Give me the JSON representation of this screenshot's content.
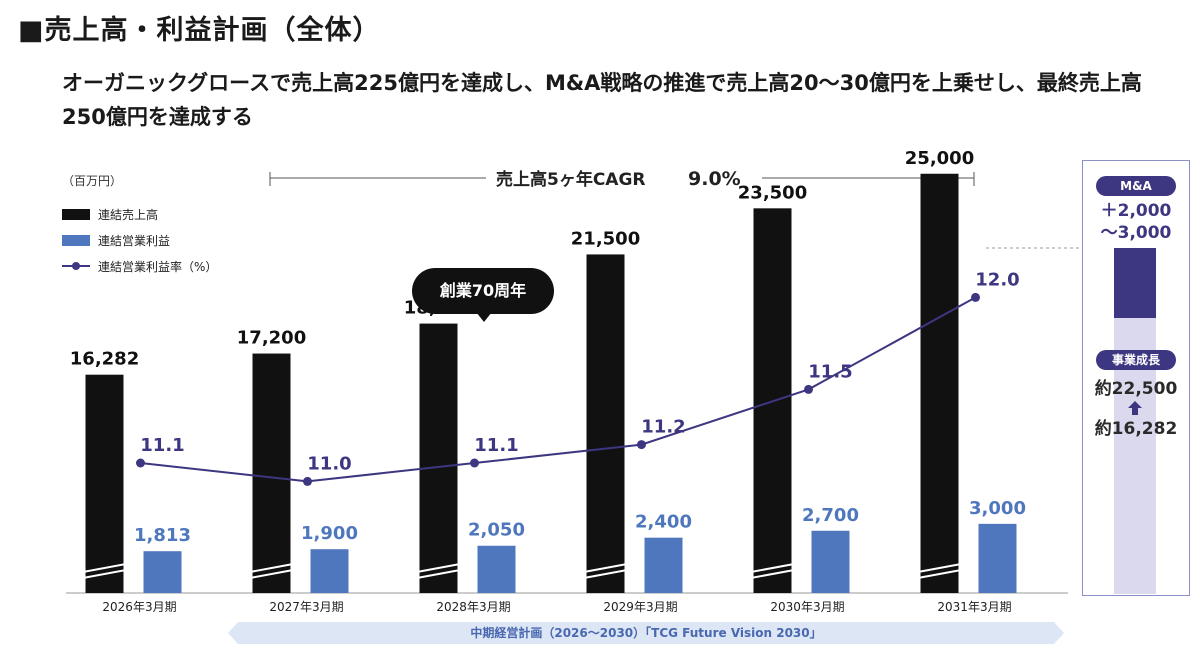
{
  "title": "■売上高・利益計画（全体）",
  "subtitle": "オーガニックグロースで売上高225億円を達成し、M&A戦略の推進で売上高20～30億円を上乗せし、最終売上高250億円を達成する",
  "unit": "（百万円）",
  "cagr": {
    "label": "売上高5ヶ年CAGR",
    "value": "9.0%"
  },
  "bubble": "創業70周年",
  "banner": "中期経営計画（2026～2030）「TCG Future Vision 2030」",
  "colors": {
    "sales": "#111111",
    "profit": "#4e77bd",
    "rate_line": "#3d3680",
    "rate_label": "#3d3680",
    "profit_label": "#4e77bd"
  },
  "side": {
    "ma_pill": "M&A",
    "ma_value_1": "＋2,000",
    "ma_value_2": "～3,000",
    "growth_pill": "事業成長",
    "growth_to": "約22,500",
    "growth_from": "約16,282"
  },
  "chart_data": {
    "type": "bar",
    "categories": [
      "2026年3月期",
      "2027年3月期",
      "2028年3月期",
      "2029年3月期",
      "2030年3月期",
      "2031年3月期"
    ],
    "series": [
      {
        "name": "連結売上高",
        "type": "bar",
        "values": [
          16282,
          17200,
          18500,
          21500,
          23500,
          25000
        ],
        "labels": [
          "16,282",
          "17,200",
          "18,500",
          "21,500",
          "23,500",
          "25,000"
        ]
      },
      {
        "name": "連結営業利益",
        "type": "bar",
        "values": [
          1813,
          1900,
          2050,
          2400,
          2700,
          3000
        ],
        "labels": [
          "1,813",
          "1,900",
          "2,050",
          "2,400",
          "2,700",
          "3,000"
        ]
      },
      {
        "name": "連結営業利益率（%）",
        "type": "line",
        "values": [
          11.1,
          11.0,
          11.1,
          11.2,
          11.5,
          12.0
        ],
        "labels": [
          "11.1",
          "11.0",
          "11.1",
          "11.2",
          "11.5",
          "12.0"
        ]
      }
    ],
    "axis_break": true,
    "legend": "top-left"
  }
}
